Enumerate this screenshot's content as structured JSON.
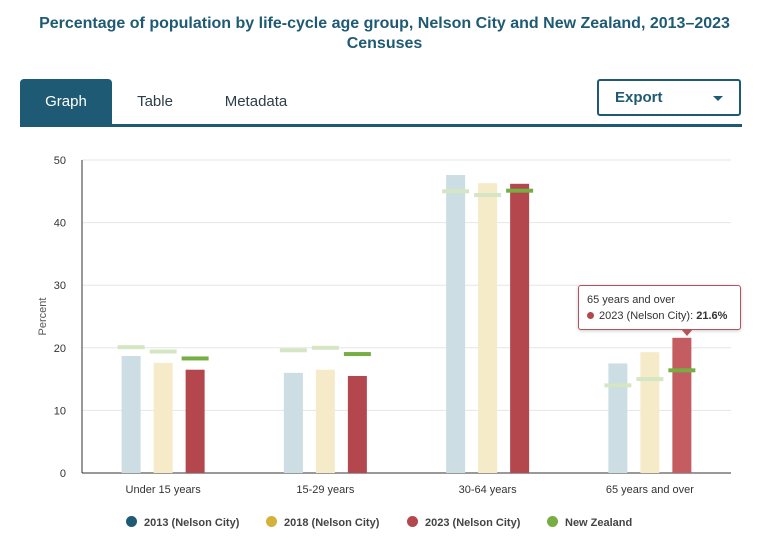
{
  "title": {
    "line1": "Percentage of population by life-cycle age group, Nelson City and New Zealand, 2013–2023",
    "line2": "Censuses"
  },
  "tabs": [
    {
      "label": "Graph",
      "active": true
    },
    {
      "label": "Table",
      "active": false
    },
    {
      "label": "Metadata",
      "active": false
    }
  ],
  "export": {
    "label": "Export"
  },
  "tooltip": {
    "category": "65 years and over",
    "series": "2023 (Nelson City)",
    "value": "21.6%"
  },
  "chart_data": {
    "type": "bar",
    "title": "Percentage of population by life-cycle age group, Nelson City and New Zealand, 2013–2023 Censuses",
    "ylabel": "Percent",
    "xlabel": "",
    "ylim": [
      0,
      50
    ],
    "yticks": [
      0,
      10,
      20,
      30,
      40,
      50
    ],
    "grid": true,
    "legend_position": "bottom",
    "categories": [
      "Under 15 years",
      "15-29 years",
      "30-64 years",
      "65 years and over"
    ],
    "series": [
      {
        "name": "2013 (Nelson City)",
        "color": "#1f5a74",
        "values": [
          18.7,
          16.0,
          47.6,
          17.5
        ]
      },
      {
        "name": "2018 (Nelson City)",
        "color": "#d4b23a",
        "values": [
          17.6,
          16.5,
          46.3,
          19.3
        ]
      },
      {
        "name": "2023 (Nelson City)",
        "color": "#b4474d",
        "values": [
          16.5,
          15.5,
          46.2,
          21.6
        ]
      }
    ],
    "markers": {
      "name": "New Zealand",
      "color": "#76ae43",
      "values": [
        [
          20.1,
          19.4,
          18.3
        ],
        [
          19.6,
          20.0,
          19.0
        ],
        [
          45.0,
          44.4,
          45.1
        ],
        [
          14.0,
          15.0,
          16.4
        ]
      ]
    }
  }
}
